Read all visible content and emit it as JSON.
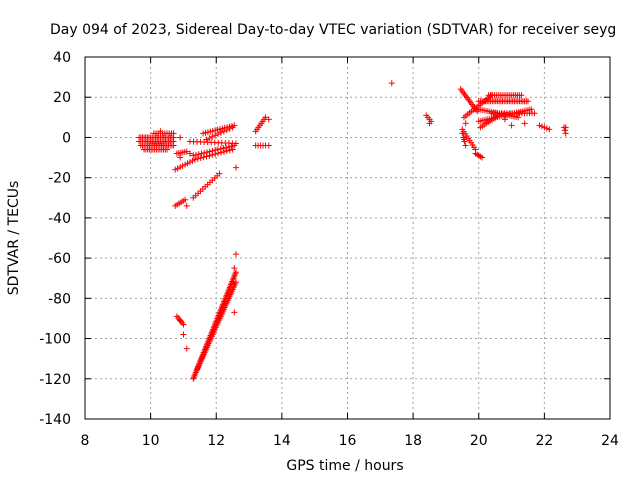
{
  "chart_data": {
    "type": "scatter",
    "title": "Day 094 of 2023, Sidereal Day-to-day VTEC variation (SDTVAR) for receiver seyg",
    "xlabel": "GPS time / hours",
    "ylabel": "SDTVAR / TECUs",
    "xlim": [
      8,
      24
    ],
    "ylim": [
      -140,
      40
    ],
    "xticks": [
      8,
      10,
      12,
      14,
      16,
      18,
      20,
      22,
      24
    ],
    "yticks": [
      -140,
      -120,
      -100,
      -80,
      -60,
      -40,
      -20,
      0,
      20,
      40
    ],
    "grid": true,
    "marker": "+",
    "color": "#ff0000",
    "series": [
      {
        "name": "SDTVAR",
        "segments": [
          {
            "x": [
              9.65,
              10.7
            ],
            "y": [
              0,
              0
            ],
            "n": 22
          },
          {
            "x": [
              9.65,
              10.7
            ],
            "y": [
              -2,
              -2
            ],
            "n": 22
          },
          {
            "x": [
              9.7,
              10.7
            ],
            "y": [
              -4,
              -4
            ],
            "n": 20
          },
          {
            "x": [
              9.8,
              10.5
            ],
            "y": [
              -6,
              -6
            ],
            "n": 14
          },
          {
            "x": [
              10.1,
              10.7
            ],
            "y": [
              2,
              2
            ],
            "n": 10
          },
          {
            "x": [
              10.8,
              11.1
            ],
            "y": [
              -8,
              -7
            ],
            "n": 6
          },
          {
            "x": [
              10.75,
              11.35
            ],
            "y": [
              -16,
              -11
            ],
            "n": 9
          },
          {
            "x": [
              11.2,
              12.6
            ],
            "y": [
              -2,
              -3
            ],
            "n": 14
          },
          {
            "x": [
              11.3,
              12.55
            ],
            "y": [
              -9,
              -4
            ],
            "n": 16
          },
          {
            "x": [
              11.35,
              12.5
            ],
            "y": [
              -11,
              -6
            ],
            "n": 14
          },
          {
            "x": [
              11.6,
              12.55
            ],
            "y": [
              2,
              6
            ],
            "n": 14
          },
          {
            "x": [
              11.7,
              12.5
            ],
            "y": [
              -1,
              5
            ],
            "n": 10
          },
          {
            "x": [
              11.3,
              12.1
            ],
            "y": [
              -30,
              -18
            ],
            "n": 12
          },
          {
            "x": [
              10.75,
              11.05
            ],
            "y": [
              -34,
              -31
            ],
            "n": 6
          },
          {
            "x": [
              13.2,
              13.5
            ],
            "y": [
              -4,
              -4
            ],
            "n": 5
          },
          {
            "x": [
              13.2,
              13.5
            ],
            "y": [
              3,
              10
            ],
            "n": 8
          },
          {
            "x": [
              11.3,
              12.6
            ],
            "y": [
              -120,
              -67
            ],
            "n": 70
          },
          {
            "x": [
              11.4,
              12.6
            ],
            "y": [
              -116,
              -72
            ],
            "n": 50
          },
          {
            "x": [
              10.8,
              11.0
            ],
            "y": [
              -89,
              -93
            ],
            "n": 6
          },
          {
            "x": [
              19.45,
              19.95
            ],
            "y": [
              24,
              13
            ],
            "n": 14
          },
          {
            "x": [
              19.55,
              20.4
            ],
            "y": [
              10,
              21
            ],
            "n": 16
          },
          {
            "x": [
              20.0,
              21.5
            ],
            "y": [
              18,
              18
            ],
            "n": 30
          },
          {
            "x": [
              20.3,
              21.3
            ],
            "y": [
              21,
              21
            ],
            "n": 18
          },
          {
            "x": [
              20.0,
              21.6
            ],
            "y": [
              8,
              14
            ],
            "n": 26
          },
          {
            "x": [
              20.0,
              21.2
            ],
            "y": [
              14,
              10
            ],
            "n": 20
          },
          {
            "x": [
              20.05,
              20.7
            ],
            "y": [
              5,
              12
            ],
            "n": 12
          },
          {
            "x": [
              20.4,
              21.7
            ],
            "y": [
              12,
              12
            ],
            "n": 18
          },
          {
            "x": [
              19.5,
              19.9
            ],
            "y": [
              4,
              -6
            ],
            "n": 10
          },
          {
            "x": [
              19.9,
              20.1
            ],
            "y": [
              -8,
              -10
            ],
            "n": 5
          },
          {
            "x": [
              19.5,
              19.6
            ],
            "y": [
              2,
              -4
            ],
            "n": 4
          },
          {
            "x": [
              18.4,
              18.55
            ],
            "y": [
              11,
              8
            ],
            "n": 4
          },
          {
            "x": [
              21.85,
              22.15
            ],
            "y": [
              6,
              4
            ],
            "n": 5
          },
          {
            "x": [
              22.6,
              22.65
            ],
            "y": [
              5,
              2
            ],
            "n": 3
          }
        ],
        "points": [
          [
            17.35,
            27
          ],
          [
            18.5,
            7
          ],
          [
            10.9,
            -10
          ],
          [
            11.1,
            -34
          ],
          [
            11.0,
            -98
          ],
          [
            11.1,
            -105
          ],
          [
            10.9,
            -91
          ],
          [
            12.6,
            -58
          ],
          [
            12.55,
            -65
          ],
          [
            12.55,
            -87
          ],
          [
            12.6,
            -15
          ],
          [
            11.2,
            -8
          ],
          [
            13.6,
            9
          ],
          [
            13.6,
            -4
          ],
          [
            22.65,
            5
          ],
          [
            21.4,
            7
          ],
          [
            21.0,
            6
          ],
          [
            10.9,
            0
          ],
          [
            10.3,
            3
          ],
          [
            19.55,
            -1
          ],
          [
            19.6,
            7
          ],
          [
            20.8,
            9
          ]
        ]
      }
    ]
  }
}
